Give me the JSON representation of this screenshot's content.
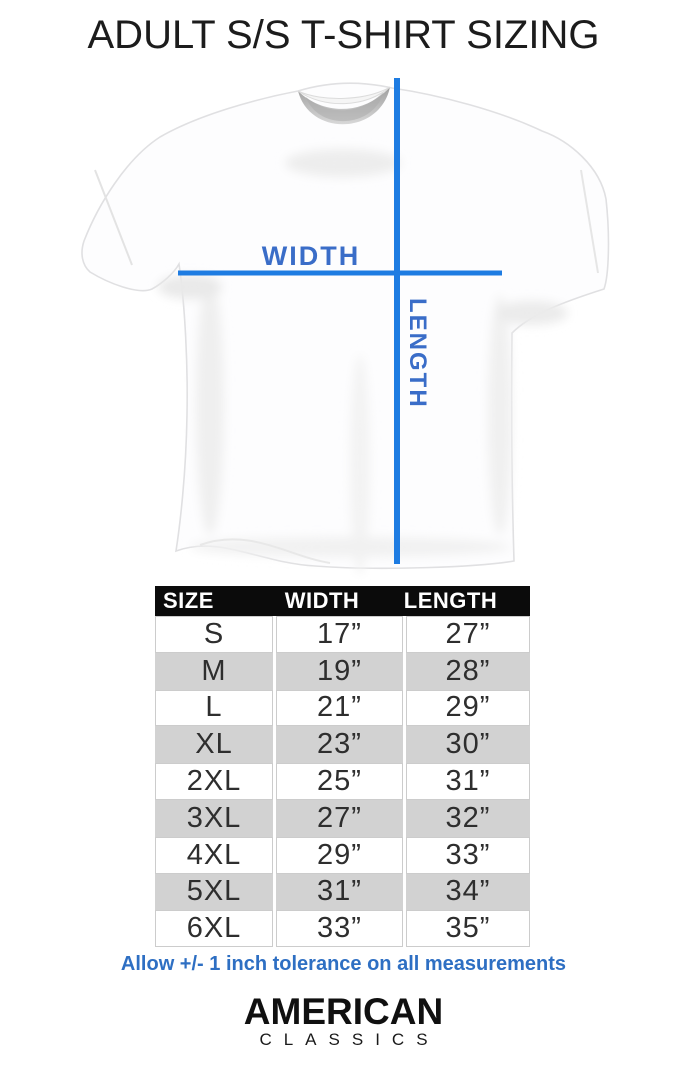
{
  "title": "ADULT S/S T-SHIRT SIZING",
  "diagram": {
    "width_label": "WIDTH",
    "length_label": "LENGTH"
  },
  "chart_data": {
    "type": "table",
    "title": "ADULT S/S T-SHIRT SIZING",
    "columns": [
      "SIZE",
      "WIDTH",
      "LENGTH"
    ],
    "rows": [
      [
        "S",
        "17”",
        "27”"
      ],
      [
        "M",
        "19”",
        "28”"
      ],
      [
        "L",
        "21”",
        "29”"
      ],
      [
        "XL",
        "23”",
        "30”"
      ],
      [
        "2XL",
        "25”",
        "31”"
      ],
      [
        "3XL",
        "27”",
        "32”"
      ],
      [
        "4XL",
        "29”",
        "33”"
      ],
      [
        "5XL",
        "31”",
        "34”"
      ],
      [
        "6XL",
        "33”",
        "35”"
      ]
    ],
    "units": "inches",
    "note": "Allow +/- 1 inch tolerance on all measurements"
  },
  "tolerance_note": "Allow +/- 1 inch tolerance on all measurements",
  "brand": {
    "line1": "AMERICAN",
    "line2": "CLASSICS"
  },
  "colors": {
    "line": "#1e7ce2",
    "label": "#3a6dc8",
    "note": "#2e6fc3",
    "header_bg": "#0b0b0b",
    "alt_row": "#d2d2d2",
    "cell_border": "#cccccc"
  }
}
